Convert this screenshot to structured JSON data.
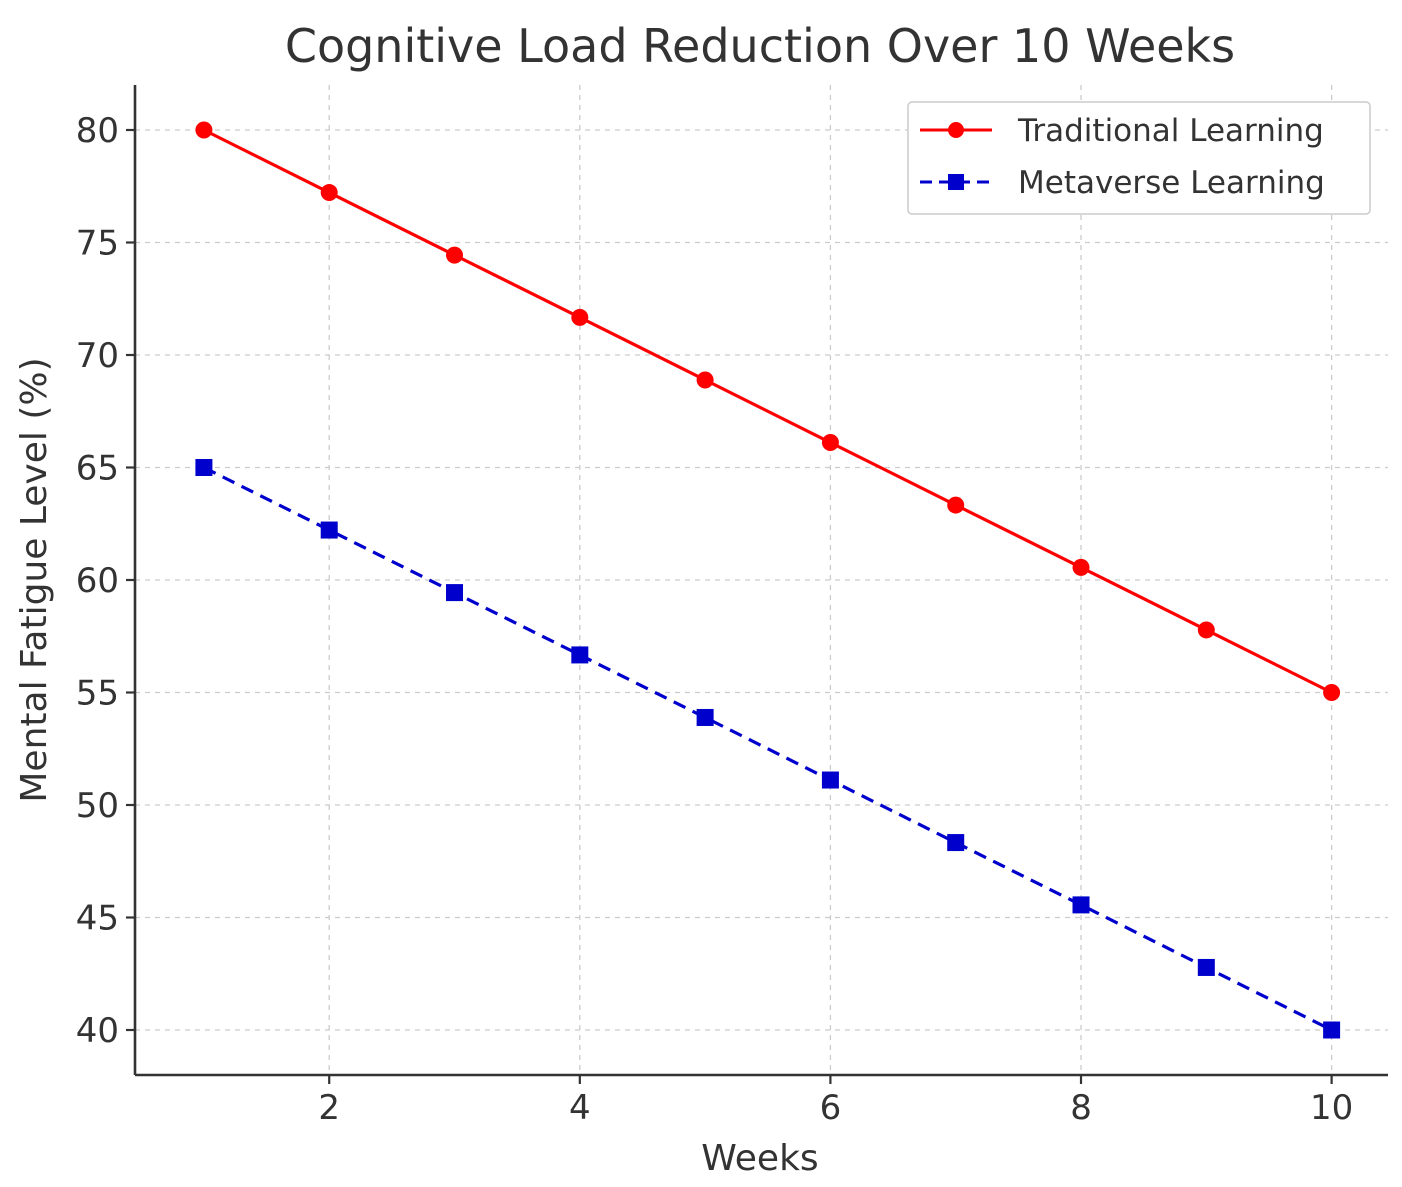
{
  "chart_data": {
    "type": "line",
    "title": "Cognitive Load Reduction Over 10 Weeks",
    "xlabel": "Weeks",
    "ylabel": "Mental Fatigue Level (%)",
    "x": [
      1,
      2,
      3,
      4,
      5,
      6,
      7,
      8,
      9,
      10
    ],
    "xticks": [
      2,
      4,
      6,
      8,
      10
    ],
    "yticks": [
      40,
      45,
      50,
      55,
      60,
      65,
      70,
      75,
      80
    ],
    "xlim": [
      0.45,
      10.45
    ],
    "ylim": [
      38,
      82
    ],
    "grid": true,
    "legend_position": "top-right",
    "series": [
      {
        "name": "Traditional Learning",
        "color": "#ff0000",
        "marker": "circle",
        "linestyle": "solid",
        "values": [
          80,
          77.22,
          74.44,
          71.67,
          68.89,
          66.11,
          63.33,
          60.56,
          57.78,
          55
        ]
      },
      {
        "name": "Metaverse Learning",
        "color": "#0000cc",
        "marker": "square",
        "linestyle": "dashed",
        "values": [
          65,
          62.22,
          59.44,
          56.67,
          53.89,
          51.11,
          48.33,
          45.56,
          42.78,
          40
        ]
      }
    ]
  }
}
